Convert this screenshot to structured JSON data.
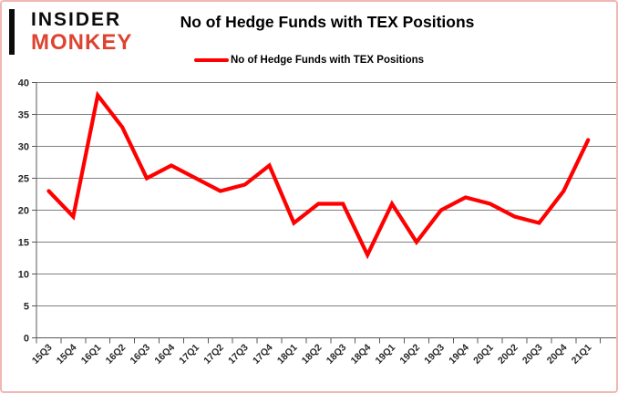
{
  "page": {
    "background": "#ffffff",
    "border_color": "#f2b6b6"
  },
  "header": {
    "logo": {
      "line1": "INSIDER",
      "line2": "MONKEY",
      "accent_color": "#dd4430"
    },
    "title": "No of Hedge Funds with TEX Positions"
  },
  "legend": {
    "label": "No of Hedge Funds with TEX Positions",
    "swatch_color": "#ff0000",
    "position": "top"
  },
  "chart_data": {
    "type": "line",
    "title": "No of Hedge Funds with TEX Positions",
    "series": [
      {
        "name": "No of Hedge Funds with TEX Positions",
        "color": "#ff0000",
        "values": [
          23,
          19,
          38,
          33,
          25,
          27,
          25,
          23,
          24,
          27,
          18,
          21,
          21,
          13,
          21,
          15,
          20,
          22,
          21,
          19,
          18,
          23,
          31
        ]
      }
    ],
    "categories": [
      "15Q3",
      "15Q4",
      "16Q1",
      "16Q2",
      "16Q3",
      "16Q4",
      "17Q1",
      "17Q2",
      "17Q3",
      "17Q4",
      "18Q1",
      "18Q2",
      "18Q3",
      "18Q4",
      "19Q1",
      "19Q2",
      "19Q3",
      "19Q4",
      "20Q1",
      "20Q2",
      "20Q3",
      "20Q4",
      "21Q1"
    ],
    "xlabel": "",
    "ylabel": "",
    "ylim": [
      0,
      40
    ],
    "yticks": [
      0,
      5,
      10,
      15,
      20,
      25,
      30,
      35,
      40
    ],
    "grid": true,
    "gridline_color": "#808080",
    "axis_color": "#595959",
    "tick_label_color": "#262626",
    "legend_position": "top"
  }
}
